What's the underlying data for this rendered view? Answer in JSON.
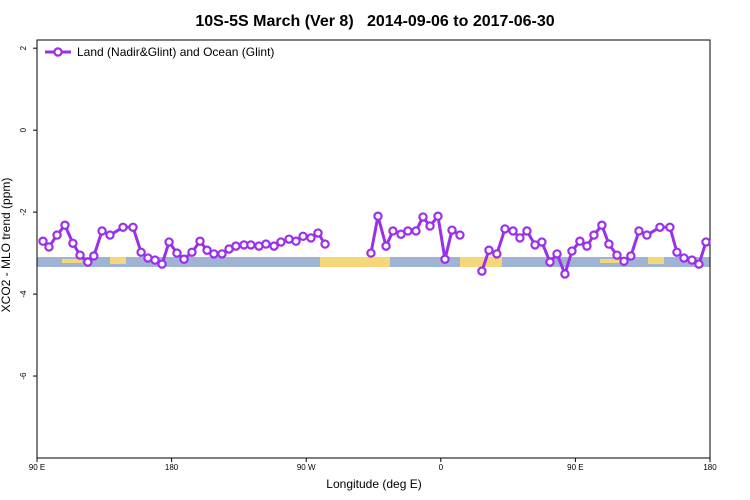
{
  "chart_data": {
    "type": "line",
    "title": "10S-5S March (Ver 8)   2014-09-06 to 2017-06-30",
    "x_label": "Longitude (deg E)",
    "y_label": "XCO2 - MLO trend (ppm)",
    "x": [
      94,
      98,
      103.4,
      108.7,
      114,
      118.8,
      124,
      128,
      133.5,
      138.8,
      147.5,
      154.2,
      159.6,
      164.2,
      168.9,
      173.6,
      178.3,
      183.6,
      188.3,
      193.6,
      199,
      203.7,
      208.3,
      213.7,
      218.4,
      223,
      228.4,
      233,
      238.4,
      243.1,
      248.5,
      253.1,
      258.5,
      263.2,
      267.9,
      273.2,
      277.9,
      282.6,
      298,
      313.3,
      318,
      323.4,
      328,
      333.4,
      338,
      343.4,
      348.1,
      352.8,
      358.1,
      362.8,
      367.5,
      372.8,
      380,
      387.5,
      392.2,
      397.5,
      402.9,
      408.3,
      412.9,
      417.6,
      423,
      427.6,
      433,
      437.7,
      443,
      447.7,
      453,
      457.7,
      462.4,
      467.7,
      472.4,
      477.8,
      482.5,
      487.1,
      492.5,
      497.8,
      506.5,
      513.2,
      517.9,
      522.6,
      527.9,
      532.6,
      537.3
    ],
    "series": [
      {
        "name": "Land (Nadir&Glint) and Ocean (Glint)",
        "color": "#9b30e8",
        "values": [
          -2.71,
          -2.85,
          -2.56,
          -2.32,
          -2.76,
          -3.05,
          -3.22,
          -3.07,
          -2.46,
          -2.56,
          -2.37,
          -2.37,
          -2.98,
          -3.12,
          -3.17,
          -3.27,
          -2.73,
          -3.0,
          -3.15,
          -2.98,
          -2.71,
          -2.93,
          -3.02,
          -3.02,
          -2.9,
          -2.83,
          -2.8,
          -2.8,
          -2.83,
          -2.78,
          -2.83,
          -2.73,
          -2.66,
          -2.71,
          -2.59,
          -2.63,
          -2.51,
          -2.78,
          null,
          -3.0,
          -2.1,
          -2.83,
          -2.46,
          -2.54,
          -2.46,
          -2.46,
          -2.12,
          -2.34,
          -2.1,
          -3.15,
          -2.44,
          -2.56,
          null,
          -3.44,
          -2.93,
          -3.02,
          -2.41,
          -2.46,
          -2.63,
          -2.46,
          -2.8,
          -2.73,
          -3.22,
          -3.02,
          -3.51,
          -2.95,
          -2.71,
          -2.83,
          -2.56,
          -2.32,
          -2.78,
          -3.05,
          -3.2,
          -3.07,
          -2.46,
          -2.56,
          -2.37,
          -2.37,
          -2.98,
          -3.12,
          -3.17,
          -3.27,
          -2.73
        ]
      }
    ],
    "xlim": [
      90,
      540
    ],
    "xticks": [
      {
        "value": 90,
        "label": "90 E"
      },
      180,
      {
        "value": 270,
        "label": "90 W"
      },
      {
        "value": 360,
        "label": "0"
      },
      {
        "value": 450,
        "label": "90 E"
      },
      {
        "value": 540,
        "label": "180"
      }
    ],
    "ylim": [
      -8,
      2.2
    ],
    "yticks": [
      -6,
      -4,
      -2,
      0,
      2
    ],
    "legend": "top-left"
  }
}
